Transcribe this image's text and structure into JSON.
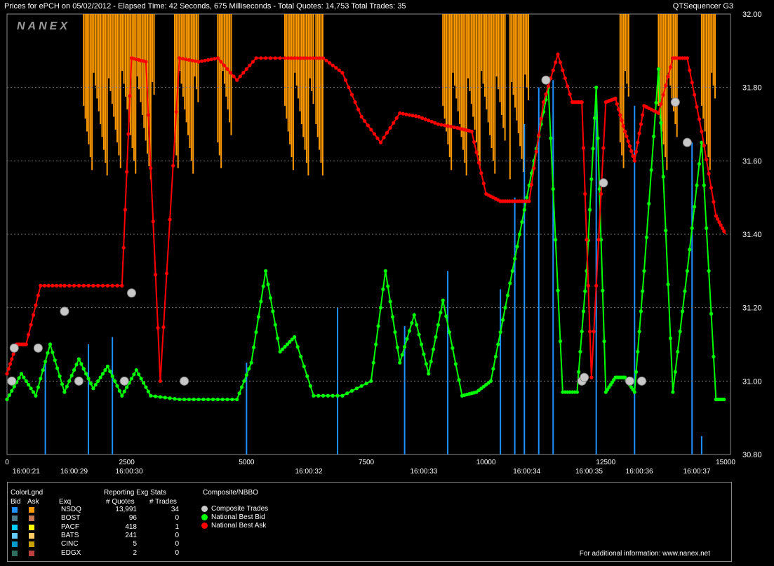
{
  "title": {
    "left": "Prices for  ePCH  on  05/02/2012  -  Elapsed Time: 42 Seconds, 675 Milliseconds  -  Total Quotes: 14,753  Total Trades: 35",
    "right": "QTSequencer G3"
  },
  "watermark": "NANEX",
  "chart_data": {
    "type": "line",
    "ylim": [
      30.8,
      32.0
    ],
    "xlim": [
      0,
      15000
    ],
    "y_ticks": [
      "30.80",
      "31.00",
      "31.20",
      "31.40",
      "31.60",
      "31.80",
      "32.00"
    ],
    "x_ticks": [
      "0",
      "2500",
      "5000",
      "7500",
      "10000",
      "12500",
      "15000"
    ],
    "time_ticks": [
      {
        "x": 400,
        "label": "16:00:21"
      },
      {
        "x": 1400,
        "label": "16:00:29"
      },
      {
        "x": 2550,
        "label": "16:00:30"
      },
      {
        "x": 6300,
        "label": "16:00:32"
      },
      {
        "x": 8700,
        "label": "16:00:33"
      },
      {
        "x": 10850,
        "label": "16:00:34"
      },
      {
        "x": 12150,
        "label": "16:00:35"
      },
      {
        "x": 13200,
        "label": "16:00:36"
      },
      {
        "x": 14400,
        "label": "16:00:37"
      }
    ],
    "grid": true,
    "legend": "bottom-panel",
    "series": [
      {
        "name": "National Best Bid",
        "color": "#00ff00",
        "x": [
          0,
          300,
          600,
          900,
          1200,
          1500,
          1800,
          2100,
          2400,
          2700,
          3000,
          3600,
          4200,
          4800,
          5100,
          5400,
          5700,
          6000,
          6400,
          7000,
          7600,
          7900,
          8200,
          8500,
          8800,
          9100,
          9500,
          9800,
          10100,
          10400,
          10700,
          11000,
          11300,
          11600,
          11900,
          12100,
          12300,
          12500,
          12700,
          12900,
          13100,
          13300,
          13600,
          13900,
          14200,
          14500,
          14800,
          15000
        ],
        "values": [
          30.95,
          31.02,
          30.96,
          31.1,
          30.97,
          31.06,
          30.98,
          31.04,
          30.96,
          31.03,
          30.96,
          30.95,
          30.95,
          30.95,
          31.05,
          31.3,
          31.08,
          31.12,
          30.96,
          30.96,
          31.0,
          31.3,
          31.05,
          31.18,
          31.02,
          31.22,
          30.96,
          30.97,
          31.0,
          31.2,
          31.4,
          31.6,
          31.8,
          30.97,
          30.97,
          31.3,
          31.8,
          30.97,
          31.01,
          31.01,
          30.97,
          31.3,
          31.85,
          30.97,
          31.3,
          31.65,
          30.95,
          30.95
        ]
      },
      {
        "name": "National Best Ask",
        "color": "#ff0000",
        "x": [
          0,
          200,
          400,
          700,
          1200,
          1800,
          2400,
          2600,
          2900,
          3200,
          3600,
          4000,
          4400,
          4800,
          5200,
          5800,
          6200,
          6600,
          7000,
          7400,
          7800,
          8200,
          8600,
          9000,
          9400,
          9700,
          10000,
          10300,
          10600,
          10900,
          11200,
          11500,
          11800,
          12000,
          12200,
          12500,
          12700,
          12900,
          13100,
          13300,
          13600,
          13900,
          14200,
          14500,
          14800,
          15000
        ],
        "values": [
          31.02,
          31.1,
          31.1,
          31.26,
          31.26,
          31.26,
          31.26,
          31.88,
          31.87,
          31.0,
          31.88,
          31.87,
          31.88,
          31.82,
          31.88,
          31.88,
          31.88,
          31.88,
          31.84,
          31.72,
          31.65,
          31.73,
          31.72,
          31.7,
          31.69,
          31.68,
          31.51,
          31.49,
          31.49,
          31.49,
          31.76,
          31.89,
          31.76,
          31.76,
          31.01,
          31.76,
          31.77,
          31.68,
          31.6,
          31.75,
          31.73,
          31.88,
          31.88,
          31.68,
          31.45,
          31.4
        ]
      },
      {
        "name": "Composite Trades",
        "color": "#c8c8c8",
        "x": [
          100,
          150,
          650,
          1200,
          1500,
          2450,
          2600,
          3700,
          11250,
          12000,
          12050,
          12450,
          13000,
          13250,
          13950,
          14200
        ],
        "values": [
          31.0,
          31.09,
          31.09,
          31.19,
          31.0,
          31.0,
          31.24,
          31.0,
          31.82,
          31.0,
          31.01,
          31.54,
          31.0,
          31.0,
          31.76,
          31.65
        ]
      }
    ]
  },
  "legend": {
    "colorlgnd": "ColorLgnd",
    "bid_header": "Bid",
    "ask_header": "Ask",
    "exq_header": "Exq",
    "stats_title": "Reporting Exg Stats",
    "quotes_header": "# Quotes",
    "trades_header": "# Trades",
    "composite_title": "Composite/NBBO",
    "exchanges": [
      {
        "name": "NSDQ",
        "quotes": "13,991",
        "trades": "34",
        "bid_color": "#1e90ff",
        "ask_color": "#ff9900"
      },
      {
        "name": "BOST",
        "quotes": "96",
        "trades": "0",
        "bid_color": "#4a7a8c",
        "ask_color": "#c87850"
      },
      {
        "name": "PACF",
        "quotes": "418",
        "trades": "1",
        "bid_color": "#00ccff",
        "ask_color": "#ffff00"
      },
      {
        "name": "BATS",
        "quotes": "241",
        "trades": "0",
        "bid_color": "#66ccff",
        "ask_color": "#ffcc66"
      },
      {
        "name": "CINC",
        "quotes": "5",
        "trades": "0",
        "bid_color": "#0099cc",
        "ask_color": "#c8a000"
      },
      {
        "name": "EDGX",
        "quotes": "2",
        "trades": "0",
        "bid_color": "#2f6f5f",
        "ask_color": "#c04040"
      }
    ],
    "nbbo_items": [
      {
        "label": "Composite Trades",
        "color": "#c8c8c8"
      },
      {
        "label": "National Best Bid",
        "color": "#00ff00"
      },
      {
        "label": "National Best Ask",
        "color": "#ff0000"
      }
    ],
    "info": "For additional information: www.nanex.net"
  }
}
